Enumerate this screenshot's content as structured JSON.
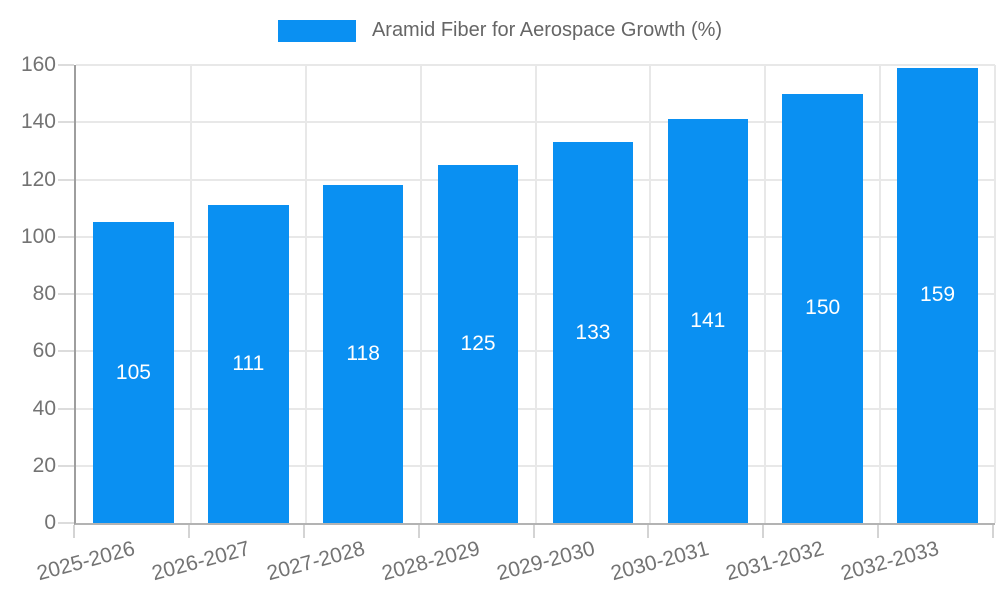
{
  "chart_data": {
    "type": "bar",
    "title": "Aramid Fiber for Aerospace Growth (%)",
    "categories": [
      "2025-2026",
      "2026-2027",
      "2027-2028",
      "2028-2029",
      "2029-2030",
      "2030-2031",
      "2031-2032",
      "2032-2033"
    ],
    "values": [
      105,
      111,
      118,
      125,
      133,
      141,
      150,
      159
    ],
    "value_labels": [
      "105",
      "111",
      "118",
      "125",
      "133",
      "141",
      "150",
      "159"
    ],
    "xlabel": "",
    "ylabel": "",
    "ylim": [
      0,
      160
    ],
    "yticks": [
      0,
      20,
      40,
      60,
      80,
      100,
      120,
      140,
      160
    ],
    "grid": true,
    "legend_position": "top-center",
    "colors": {
      "bar": "#0a90f2",
      "value_label": "#ffffff",
      "tick_label": "#737373",
      "legend_text": "#666666",
      "gridline": "#e8e8e8",
      "y_axis_line": "#9e9e9e",
      "x_axis_line": "#b3b3b3"
    }
  }
}
